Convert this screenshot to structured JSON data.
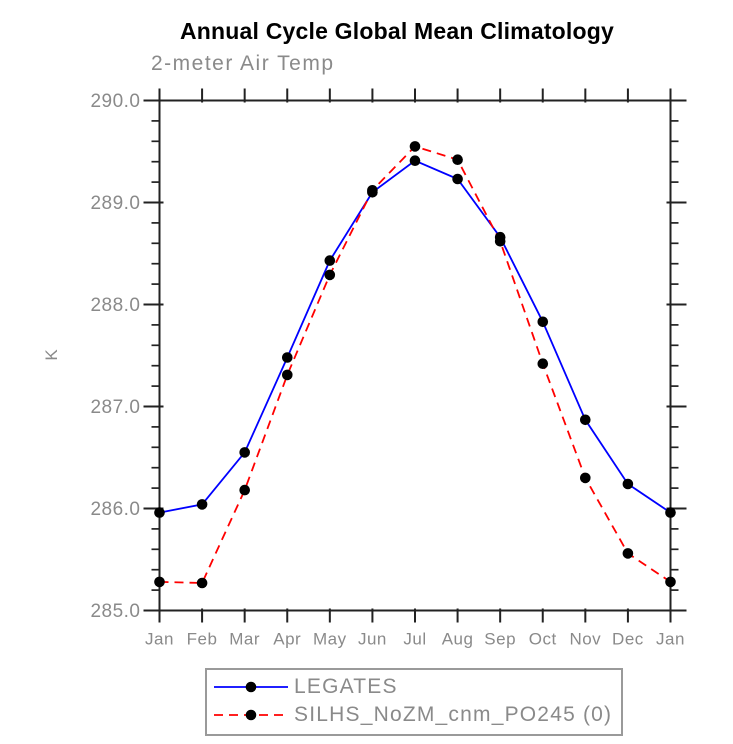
{
  "page": {
    "title": "Annual Cycle Global Mean Climatology",
    "subtitle": "2-meter Air Temp"
  },
  "colors": {
    "axis": "#222222",
    "label_gray": "#8a8a8a",
    "legend_border": "#9a9a9a",
    "series1": "#0000ff",
    "series2": "#ff0000",
    "marker": "#000000",
    "background": "#ffffff"
  },
  "chart_data": {
    "type": "line",
    "title": "Annual Cycle Global Mean Climatology",
    "subtitle": "2-meter Air Temp",
    "xlabel": "",
    "ylabel": "K",
    "categories": [
      "Jan",
      "Feb",
      "Mar",
      "Apr",
      "May",
      "Jun",
      "Jul",
      "Aug",
      "Sep",
      "Oct",
      "Nov",
      "Dec",
      "Jan"
    ],
    "ylim": [
      285.0,
      290.0
    ],
    "yticks": [
      285.0,
      286.0,
      287.0,
      288.0,
      289.0,
      290.0
    ],
    "ytick_labels": [
      "285.0",
      "286.0",
      "287.0",
      "288.0",
      "289.0",
      "290.0"
    ],
    "minor_tick_step": 0.2,
    "grid": false,
    "frame": true,
    "tick_direction": "out",
    "legend_position": "bottom-center",
    "series": [
      {
        "name": "LEGATES",
        "color": "#0000ff",
        "line_style": "solid",
        "marker": "filled-circle",
        "marker_color": "#000000",
        "values": [
          285.96,
          286.04,
          286.55,
          287.48,
          288.43,
          289.1,
          289.41,
          289.23,
          288.66,
          287.83,
          286.87,
          286.24,
          285.96
        ]
      },
      {
        "name": "SILHS_NoZM_cnm_PO245 (0)",
        "color": "#ff0000",
        "line_style": "dashed",
        "marker": "filled-circle",
        "marker_color": "#000000",
        "values": [
          285.28,
          285.27,
          286.18,
          287.31,
          288.29,
          289.12,
          289.55,
          289.42,
          288.62,
          287.42,
          286.3,
          285.56,
          285.28
        ]
      }
    ]
  }
}
